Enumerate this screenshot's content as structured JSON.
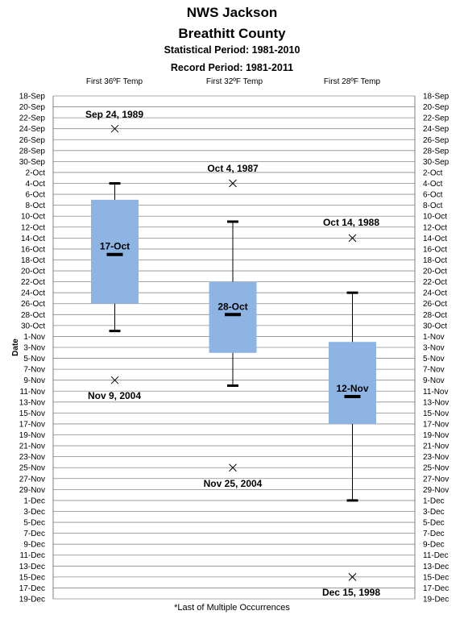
{
  "header": {
    "title": "NWS Jackson",
    "subtitle": "Breathitt County",
    "statistical_period": "Statistical Period: 1981-2010",
    "record_period": "Record Period: 1981-2011"
  },
  "footnote": "*Last of Multiple Occurrences",
  "chart_data": {
    "type": "box",
    "title": "NWS Jackson Breathitt County",
    "ylabel": "Date",
    "categories": [
      "First 36ºF Temp",
      "First 32ºF Temp",
      "First 28ºF Temp"
    ],
    "y_ticks": [
      "18-Sep",
      "20-Sep",
      "22-Sep",
      "24-Sep",
      "26-Sep",
      "28-Sep",
      "30-Sep",
      "2-Oct",
      "4-Oct",
      "6-Oct",
      "8-Oct",
      "10-Oct",
      "12-Oct",
      "14-Oct",
      "16-Oct",
      "18-Oct",
      "20-Oct",
      "22-Oct",
      "24-Oct",
      "26-Oct",
      "28-Oct",
      "30-Oct",
      "1-Nov",
      "3-Nov",
      "5-Nov",
      "7-Nov",
      "9-Nov",
      "11-Nov",
      "13-Nov",
      "15-Nov",
      "17-Nov",
      "19-Nov",
      "21-Nov",
      "23-Nov",
      "25-Nov",
      "27-Nov",
      "29-Nov",
      "1-Dec",
      "3-Dec",
      "5-Dec",
      "7-Dec",
      "9-Dec",
      "11-Dec",
      "13-Dec",
      "15-Dec",
      "17-Dec",
      "19-Dec"
    ],
    "ylim": [
      "18-Sep",
      "19-Dec"
    ],
    "grid": true,
    "box_color": "#8eb4e3",
    "boxes": [
      {
        "category": "First 36ºF Temp",
        "whisker_low": "4-Oct",
        "q1": "7-Oct",
        "median": "17-Oct",
        "q3": "26-Oct",
        "whisker_high": "31-Oct",
        "median_label": "17-Oct",
        "records": [
          {
            "date": "24-Sep",
            "label": "Sep 24, 1989"
          },
          {
            "date": "9-Nov",
            "label": "Nov 9, 2004"
          }
        ]
      },
      {
        "category": "First 32ºF Temp",
        "whisker_low": "11-Oct",
        "q1": "22-Oct",
        "median": "28-Oct",
        "q3": "4-Nov",
        "whisker_high": "10-Nov",
        "median_label": "28-Oct",
        "records": [
          {
            "date": "4-Oct",
            "label": "Oct 4, 1987"
          },
          {
            "date": "25-Nov",
            "label": "Nov 25, 2004"
          }
        ]
      },
      {
        "category": "First 28ºF Temp",
        "whisker_low": "24-Oct",
        "q1": "2-Nov",
        "median": "12-Nov",
        "q3": "17-Nov",
        "whisker_high": "1-Dec",
        "median_label": "12-Nov",
        "records": [
          {
            "date": "14-Oct",
            "label": "Oct 14, 1988"
          },
          {
            "date": "15-Dec",
            "label": "Dec 15, 1998"
          }
        ]
      }
    ]
  }
}
